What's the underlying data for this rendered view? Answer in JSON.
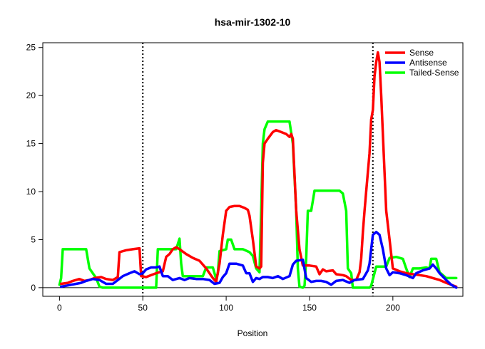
{
  "chart_data": {
    "type": "line",
    "title": "hsa-mir-1302-10",
    "xlabel": "Position",
    "ylabel": "",
    "xlim": [
      -10,
      242
    ],
    "ylim": [
      -0.9,
      25.5
    ],
    "xticks": [
      0,
      50,
      100,
      150,
      200
    ],
    "yticks": [
      0,
      5,
      10,
      15,
      20,
      25
    ],
    "grid": false,
    "legend_position": "top-right",
    "hline": 0,
    "vlines": [
      50,
      188
    ],
    "series": [
      {
        "name": "Sense",
        "color": "#ff0000",
        "points": [
          [
            1,
            0.4
          ],
          [
            5,
            0.5
          ],
          [
            8,
            0.7
          ],
          [
            12,
            0.9
          ],
          [
            15,
            0.7
          ],
          [
            18,
            0.8
          ],
          [
            21,
            1.0
          ],
          [
            25,
            1.1
          ],
          [
            28,
            0.9
          ],
          [
            32,
            0.8
          ],
          [
            35,
            1.1
          ],
          [
            36,
            3.7
          ],
          [
            40,
            3.9
          ],
          [
            44,
            4.0
          ],
          [
            48,
            4.1
          ],
          [
            49,
            1.2
          ],
          [
            52,
            1.1
          ],
          [
            55,
            1.3
          ],
          [
            58,
            1.5
          ],
          [
            62,
            1.7
          ],
          [
            64,
            3.2
          ],
          [
            66,
            3.5
          ],
          [
            68,
            4.0
          ],
          [
            70,
            4.2
          ],
          [
            72,
            4.0
          ],
          [
            76,
            3.5
          ],
          [
            80,
            3.1
          ],
          [
            84,
            2.8
          ],
          [
            88,
            2.0
          ],
          [
            92,
            1.0
          ],
          [
            94,
            0.6
          ],
          [
            96,
            2.5
          ],
          [
            98,
            5.5
          ],
          [
            100,
            8.0
          ],
          [
            102,
            8.4
          ],
          [
            105,
            8.5
          ],
          [
            108,
            8.5
          ],
          [
            111,
            8.3
          ],
          [
            113,
            8.1
          ],
          [
            114,
            7.5
          ],
          [
            116,
            5.0
          ],
          [
            118,
            2.2
          ],
          [
            120,
            2.0
          ],
          [
            121,
            2.2
          ],
          [
            122,
            13.0
          ],
          [
            123,
            15.0
          ],
          [
            125,
            15.5
          ],
          [
            128,
            16.2
          ],
          [
            130,
            16.4
          ],
          [
            133,
            16.2
          ],
          [
            136,
            16.0
          ],
          [
            138,
            15.7
          ],
          [
            139,
            16.0
          ],
          [
            140,
            15.5
          ],
          [
            142,
            8.0
          ],
          [
            144,
            4.0
          ],
          [
            146,
            2.3
          ],
          [
            150,
            2.3
          ],
          [
            154,
            2.2
          ],
          [
            156,
            1.4
          ],
          [
            158,
            1.9
          ],
          [
            160,
            1.7
          ],
          [
            164,
            1.8
          ],
          [
            166,
            1.4
          ],
          [
            170,
            1.3
          ],
          [
            172,
            1.2
          ],
          [
            175,
            0.8
          ],
          [
            178,
            0.8
          ],
          [
            180,
            1.6
          ],
          [
            181,
            3.0
          ],
          [
            182,
            5.8
          ],
          [
            183,
            8.0
          ],
          [
            184,
            10.0
          ],
          [
            186,
            14.0
          ],
          [
            187,
            17.5
          ],
          [
            188,
            18.5
          ],
          [
            189,
            22.0
          ],
          [
            190,
            23.5
          ],
          [
            191,
            24.5
          ],
          [
            192,
            23.5
          ],
          [
            193,
            20.0
          ],
          [
            194,
            16.0
          ],
          [
            196,
            8.0
          ],
          [
            198,
            5.0
          ],
          [
            200,
            2.0
          ],
          [
            204,
            1.7
          ],
          [
            208,
            1.5
          ],
          [
            212,
            1.4
          ],
          [
            216,
            1.3
          ],
          [
            220,
            1.2
          ],
          [
            224,
            1.0
          ],
          [
            228,
            0.8
          ],
          [
            232,
            0.5
          ],
          [
            235,
            0.3
          ],
          [
            238,
            0.1
          ]
        ]
      },
      {
        "name": "Antisense",
        "color": "#0000ff",
        "points": [
          [
            1,
            0.1
          ],
          [
            4,
            0.2
          ],
          [
            7,
            0.3
          ],
          [
            10,
            0.4
          ],
          [
            13,
            0.5
          ],
          [
            16,
            0.7
          ],
          [
            20,
            0.9
          ],
          [
            24,
            0.8
          ],
          [
            28,
            0.4
          ],
          [
            32,
            0.4
          ],
          [
            35,
            0.8
          ],
          [
            38,
            1.2
          ],
          [
            42,
            1.5
          ],
          [
            45,
            1.7
          ],
          [
            48,
            1.4
          ],
          [
            50,
            1.5
          ],
          [
            52,
            1.9
          ],
          [
            55,
            2.1
          ],
          [
            58,
            2.1
          ],
          [
            60,
            2.2
          ],
          [
            62,
            1.2
          ],
          [
            65,
            1.2
          ],
          [
            68,
            0.8
          ],
          [
            72,
            1.0
          ],
          [
            75,
            0.8
          ],
          [
            78,
            1.0
          ],
          [
            82,
            0.9
          ],
          [
            86,
            0.9
          ],
          [
            90,
            0.8
          ],
          [
            93,
            0.4
          ],
          [
            96,
            0.5
          ],
          [
            98,
            1.1
          ],
          [
            100,
            1.5
          ],
          [
            102,
            2.5
          ],
          [
            106,
            2.5
          ],
          [
            110,
            2.3
          ],
          [
            112,
            1.5
          ],
          [
            114,
            1.5
          ],
          [
            116,
            0.6
          ],
          [
            118,
            1.0
          ],
          [
            120,
            0.9
          ],
          [
            122,
            1.1
          ],
          [
            125,
            1.1
          ],
          [
            128,
            1.0
          ],
          [
            131,
            1.2
          ],
          [
            134,
            0.9
          ],
          [
            138,
            1.2
          ],
          [
            140,
            2.4
          ],
          [
            142,
            2.8
          ],
          [
            146,
            2.9
          ],
          [
            148,
            1.0
          ],
          [
            151,
            0.6
          ],
          [
            154,
            0.7
          ],
          [
            157,
            0.7
          ],
          [
            160,
            0.6
          ],
          [
            163,
            0.3
          ],
          [
            166,
            0.7
          ],
          [
            170,
            0.8
          ],
          [
            174,
            0.5
          ],
          [
            177,
            0.8
          ],
          [
            182,
            0.9
          ],
          [
            185,
            1.8
          ],
          [
            186,
            2.5
          ],
          [
            187,
            4.0
          ],
          [
            188,
            5.5
          ],
          [
            190,
            5.8
          ],
          [
            192,
            5.5
          ],
          [
            194,
            4.0
          ],
          [
            196,
            2.0
          ],
          [
            198,
            1.3
          ],
          [
            200,
            1.6
          ],
          [
            204,
            1.5
          ],
          [
            208,
            1.3
          ],
          [
            212,
            1.0
          ],
          [
            214,
            1.5
          ],
          [
            218,
            1.8
          ],
          [
            222,
            2.0
          ],
          [
            224,
            2.4
          ],
          [
            226,
            2.0
          ],
          [
            228,
            1.5
          ],
          [
            232,
            0.8
          ],
          [
            235,
            0.3
          ],
          [
            238,
            0.0
          ]
        ]
      },
      {
        "name": "Tailed-Sense",
        "color": "#00ff00",
        "points": [
          [
            0,
            0.3
          ],
          [
            1,
            1.0
          ],
          [
            2,
            4.0
          ],
          [
            10,
            4.0
          ],
          [
            16,
            4.0
          ],
          [
            18,
            2.0
          ],
          [
            20,
            1.5
          ],
          [
            22,
            1.0
          ],
          [
            24,
            0.1
          ],
          [
            26,
            0.0
          ],
          [
            40,
            0.0
          ],
          [
            50,
            0.0
          ],
          [
            56,
            0.0
          ],
          [
            58,
            0.0
          ],
          [
            59,
            4.0
          ],
          [
            64,
            4.0
          ],
          [
            68,
            4.0
          ],
          [
            70,
            4.0
          ],
          [
            72,
            5.1
          ],
          [
            73,
            2.5
          ],
          [
            74,
            1.2
          ],
          [
            80,
            1.2
          ],
          [
            86,
            1.2
          ],
          [
            88,
            2.1
          ],
          [
            92,
            2.1
          ],
          [
            94,
            0.9
          ],
          [
            95,
            1.5
          ],
          [
            96,
            3.8
          ],
          [
            100,
            4.0
          ],
          [
            101,
            5.0
          ],
          [
            103,
            5.0
          ],
          [
            105,
            4.0
          ],
          [
            110,
            4.0
          ],
          [
            114,
            3.7
          ],
          [
            116,
            3.3
          ],
          [
            118,
            2.0
          ],
          [
            120,
            1.6
          ],
          [
            121,
            8.0
          ],
          [
            122,
            15.0
          ],
          [
            123,
            16.5
          ],
          [
            125,
            17.3
          ],
          [
            130,
            17.3
          ],
          [
            135,
            17.3
          ],
          [
            138,
            17.3
          ],
          [
            140,
            15.0
          ],
          [
            142,
            8.0
          ],
          [
            143,
            2.0
          ],
          [
            144,
            0.1
          ],
          [
            146,
            0.0
          ],
          [
            147,
            0.2
          ],
          [
            148,
            3.0
          ],
          [
            149,
            8.0
          ],
          [
            151,
            8.0
          ],
          [
            153,
            10.1
          ],
          [
            160,
            10.1
          ],
          [
            168,
            10.1
          ],
          [
            170,
            9.8
          ],
          [
            172,
            8.0
          ],
          [
            173,
            2.0
          ],
          [
            175,
            1.5
          ],
          [
            176,
            0.0
          ],
          [
            180,
            0.0
          ],
          [
            184,
            0.0
          ],
          [
            186,
            0.0
          ],
          [
            187,
            0.2
          ],
          [
            190,
            2.2
          ],
          [
            196,
            2.2
          ],
          [
            198,
            3.1
          ],
          [
            202,
            3.2
          ],
          [
            206,
            3.0
          ],
          [
            208,
            2.0
          ],
          [
            210,
            1.1
          ],
          [
            212,
            2.0
          ],
          [
            216,
            2.0
          ],
          [
            220,
            2.1
          ],
          [
            222,
            2.0
          ],
          [
            223,
            3.0
          ],
          [
            226,
            3.0
          ],
          [
            228,
            1.6
          ],
          [
            232,
            1.0
          ],
          [
            236,
            1.0
          ],
          [
            238,
            1.0
          ]
        ]
      }
    ]
  }
}
